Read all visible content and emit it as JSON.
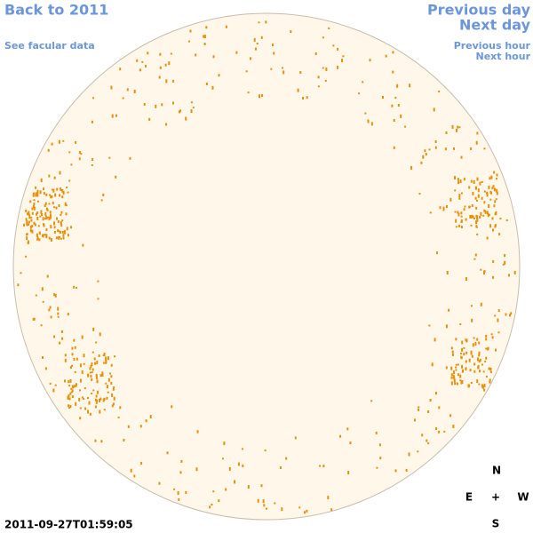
{
  "links": {
    "back": "Back to 2011",
    "facular": "See facular data",
    "previous_day": "Previous day",
    "next_day": "Next day",
    "previous_hour": "Previous hour",
    "next_hour": "Next hour"
  },
  "timestamp": "2011-09-27T01:59:05",
  "compass": {
    "north": "N",
    "east": "E",
    "center": "+",
    "west": "W",
    "south": "S"
  }
}
